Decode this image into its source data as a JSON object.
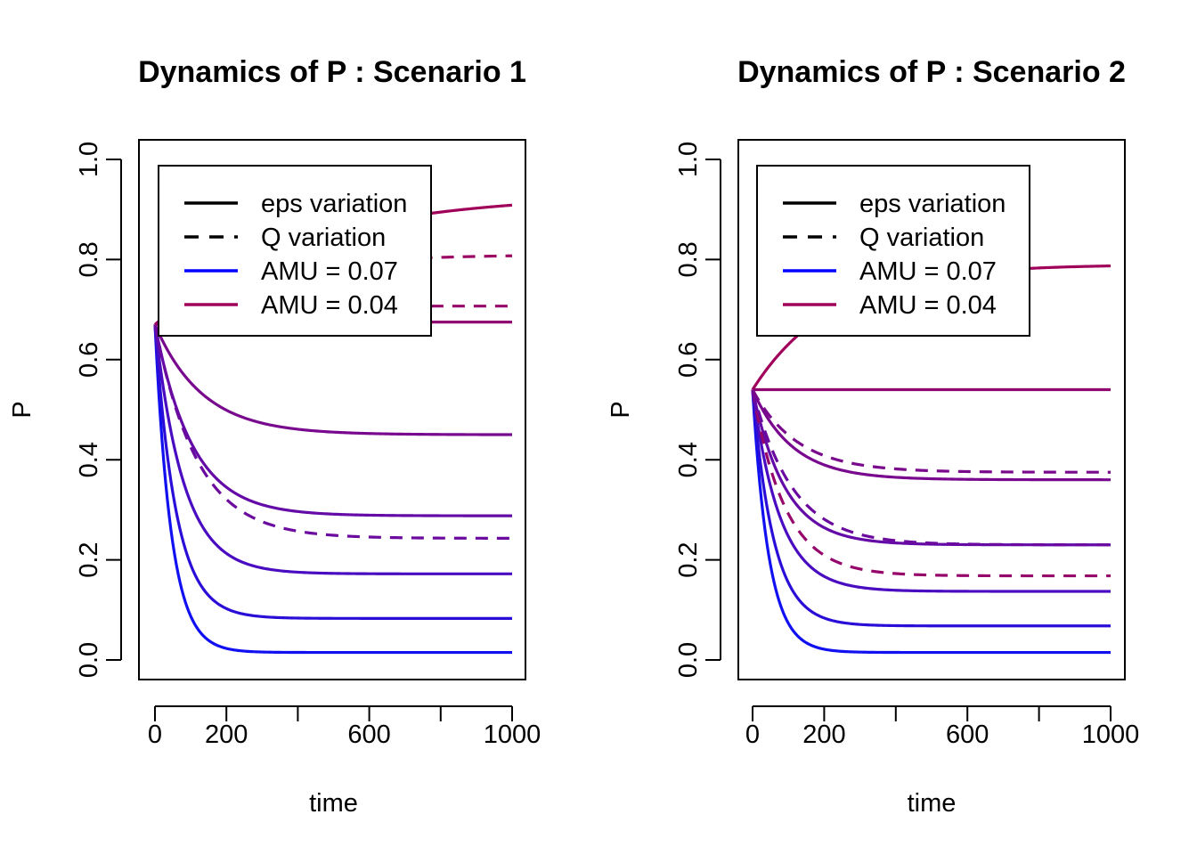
{
  "chart_data": [
    {
      "type": "line",
      "title": "Dynamics of P : Scenario 1",
      "xlabel": "time",
      "ylabel": "P",
      "xlim": [
        0,
        1000
      ],
      "ylim": [
        0,
        1
      ],
      "xticks": [
        0,
        200,
        400,
        600,
        800,
        1000
      ],
      "xtick_labels": [
        "0",
        "200",
        "",
        "600",
        "",
        "1000"
      ],
      "yticks": [
        0,
        0.2,
        0.4,
        0.6,
        0.8,
        1
      ],
      "ytick_labels": [
        "0.0",
        "0.2",
        "0.4",
        "0.6",
        "0.8",
        "1.0"
      ],
      "grid": false,
      "legend_position": "top-left",
      "legend": [
        {
          "label": "eps variation",
          "color": "#000000",
          "dash": "solid"
        },
        {
          "label": "Q variation",
          "color": "#000000",
          "dash": "dashed"
        },
        {
          "label": "AMU = 0.07",
          "color": "#0000FF",
          "dash": "solid"
        },
        {
          "label": "AMU = 0.04",
          "color": "#A0005A",
          "dash": "solid"
        }
      ],
      "series": [
        {
          "y0": 0.67,
          "yinf": 0.015,
          "rate": 0.022,
          "color": "#1010F0",
          "dash": "solid"
        },
        {
          "y0": 0.67,
          "yinf": 0.083,
          "rate": 0.017,
          "color": "#2A0ED8",
          "dash": "solid"
        },
        {
          "y0": 0.67,
          "yinf": 0.172,
          "rate": 0.0125,
          "color": "#4A0CC0",
          "dash": "solid"
        },
        {
          "y0": 0.67,
          "yinf": 0.288,
          "rate": 0.0095,
          "color": "#640AA6",
          "dash": "solid"
        },
        {
          "y0": 0.67,
          "yinf": 0.45,
          "rate": 0.0075,
          "color": "#78088E",
          "dash": "solid"
        },
        {
          "y0": 0.67,
          "yinf": 0.675,
          "rate": 0.01,
          "color": "#900670",
          "dash": "solid"
        },
        {
          "y0": 0.67,
          "yinf": 0.93,
          "rate": 0.0025,
          "color": "#A0005A",
          "dash": "solid"
        },
        {
          "y0": 0.67,
          "yinf": 0.243,
          "rate": 0.0085,
          "color": "#6A0A9E",
          "dash": "dashed"
        },
        {
          "y0": 0.67,
          "yinf": 0.707,
          "rate": 0.008,
          "color": "#96066A",
          "dash": "dashed"
        },
        {
          "y0": 0.67,
          "yinf": 0.81,
          "rate": 0.004,
          "color": "#9A0462",
          "dash": "dashed"
        }
      ]
    },
    {
      "type": "line",
      "title": "Dynamics of P : Scenario 2",
      "xlabel": "time",
      "ylabel": "P",
      "xlim": [
        0,
        1000
      ],
      "ylim": [
        0,
        1
      ],
      "xticks": [
        0,
        200,
        400,
        600,
        800,
        1000
      ],
      "xtick_labels": [
        "0",
        "200",
        "",
        "600",
        "",
        "1000"
      ],
      "yticks": [
        0,
        0.2,
        0.4,
        0.6,
        0.8,
        1
      ],
      "ytick_labels": [
        "0.0",
        "0.2",
        "0.4",
        "0.6",
        "0.8",
        "1.0"
      ],
      "grid": false,
      "legend_position": "top-left",
      "legend": [
        {
          "label": "eps variation",
          "color": "#000000",
          "dash": "solid"
        },
        {
          "label": "Q variation",
          "color": "#000000",
          "dash": "dashed"
        },
        {
          "label": "AMU = 0.07",
          "color": "#0000FF",
          "dash": "solid"
        },
        {
          "label": "AMU = 0.04",
          "color": "#A0005A",
          "dash": "solid"
        }
      ],
      "series": [
        {
          "y0": 0.54,
          "yinf": 0.015,
          "rate": 0.022,
          "color": "#1010F0",
          "dash": "solid"
        },
        {
          "y0": 0.54,
          "yinf": 0.068,
          "rate": 0.017,
          "color": "#2A0ED8",
          "dash": "solid"
        },
        {
          "y0": 0.54,
          "yinf": 0.137,
          "rate": 0.013,
          "color": "#4A0CC0",
          "dash": "solid"
        },
        {
          "y0": 0.54,
          "yinf": 0.23,
          "rate": 0.011,
          "color": "#640AA6",
          "dash": "solid"
        },
        {
          "y0": 0.54,
          "yinf": 0.36,
          "rate": 0.009,
          "color": "#78088E",
          "dash": "solid"
        },
        {
          "y0": 0.54,
          "yinf": 0.54,
          "rate": 0.01,
          "color": "#900670",
          "dash": "solid"
        },
        {
          "y0": 0.54,
          "yinf": 0.79,
          "rate": 0.0045,
          "color": "#A0005A",
          "dash": "solid"
        },
        {
          "y0": 0.54,
          "yinf": 0.168,
          "rate": 0.011,
          "color": "#96066A",
          "dash": "dashed"
        },
        {
          "y0": 0.54,
          "yinf": 0.23,
          "rate": 0.009,
          "color": "#6A0A9E",
          "dash": "dashed"
        },
        {
          "y0": 0.54,
          "yinf": 0.375,
          "rate": 0.008,
          "color": "#7A088C",
          "dash": "dashed"
        }
      ]
    }
  ]
}
